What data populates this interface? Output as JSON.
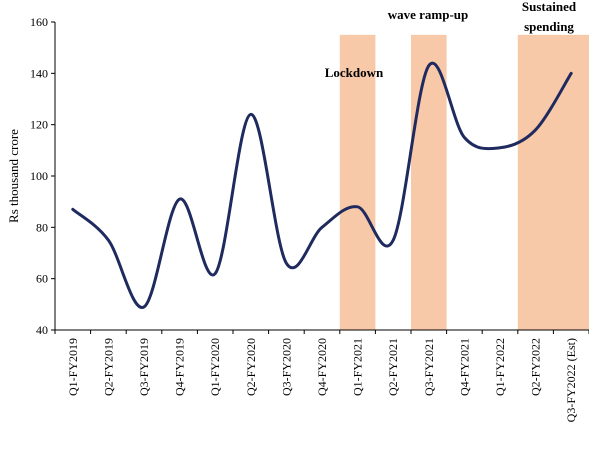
{
  "chart_data": {
    "type": "line",
    "title": "",
    "xlabel": "",
    "ylabel": "Rs thousand crore",
    "ylim": [
      40,
      160
    ],
    "yticks": [
      40,
      60,
      80,
      100,
      120,
      140,
      160
    ],
    "categories": [
      "Q1-FY2019",
      "Q2-FY2019",
      "Q3-FY2019",
      "Q4-FY2019",
      "Q1-FY2020",
      "Q2-FY2020",
      "Q3-FY2020",
      "Q4-FY2020",
      "Q1-FY2021",
      "Q2-FY2021",
      "Q3-FY2021",
      "Q4-FY2021",
      "Q1-FY2022",
      "Q2-FY2022",
      "Q3-FY2022 (Est)"
    ],
    "series": [
      {
        "values": [
          87,
          75,
          49,
          91,
          62,
          124,
          66,
          80,
          88,
          75,
          143,
          115,
          111,
          118,
          140
        ],
        "color": "#1f2a5e"
      }
    ],
    "shaded_periods": [
      {
        "label": "Lockdown",
        "from": "Q1-FY2021",
        "to": "Q1-FY2021",
        "top": 155
      },
      {
        "label": "wave ramp-up",
        "from": "Q3-FY2021",
        "to": "Q3-FY2021",
        "top": 155
      },
      {
        "label": "Sustained spending",
        "from": "Q2-FY2022",
        "to": "Q3-FY2022 (Est)",
        "top": 155
      }
    ],
    "shade_color": "#f8c9a8",
    "grid": false,
    "legend": "none"
  }
}
